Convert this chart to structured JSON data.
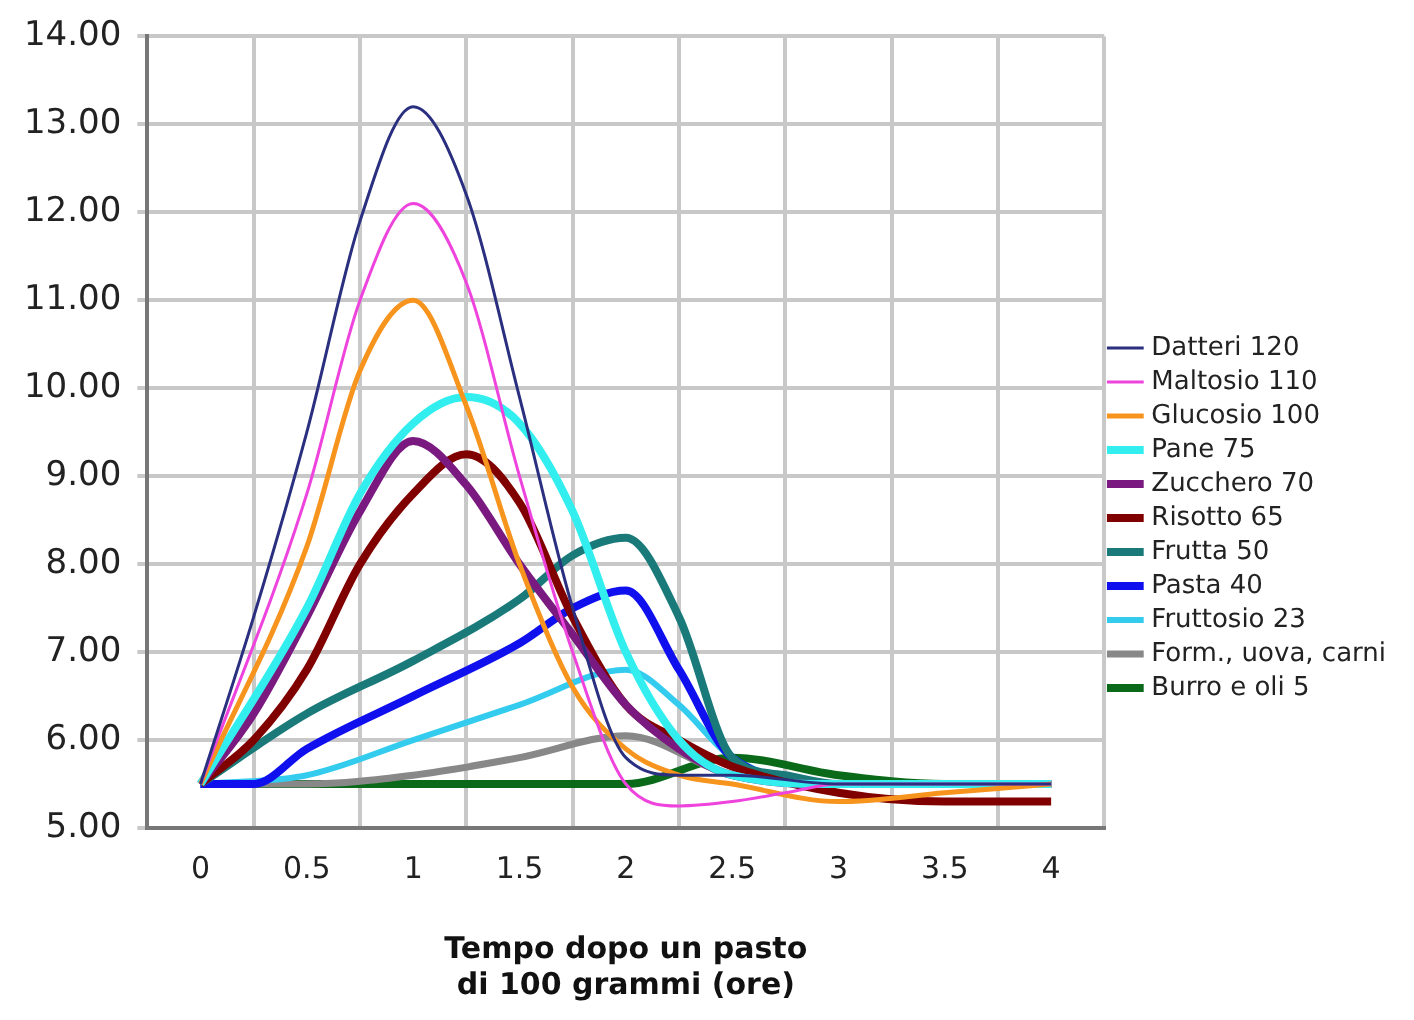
{
  "chart_data": {
    "type": "line",
    "xlabel": "Tempo dopo un pasto di 100 grammi (ore)",
    "xlim": [
      -0.25,
      4.25
    ],
    "xticks": [
      0,
      0.5,
      1,
      1.5,
      2,
      2.5,
      3,
      3.5,
      4
    ],
    "ylim": [
      5,
      14
    ],
    "yticks": [
      {
        "value": 5,
        "label": "5.00"
      },
      {
        "value": 6,
        "label": "6.00"
      },
      {
        "value": 7,
        "label": "7.00"
      },
      {
        "value": 8,
        "label": "8.00"
      },
      {
        "value": 9,
        "label": "9.00"
      },
      {
        "value": 10,
        "label": "10.00"
      },
      {
        "value": 11,
        "label": "11.00"
      },
      {
        "value": 12,
        "label": "12.00"
      },
      {
        "value": 13,
        "label": "13.00"
      },
      {
        "value": 14,
        "label": "14.00"
      }
    ],
    "grid": true,
    "legend": "right",
    "marker": "none",
    "line_style": "solid",
    "series": [
      {
        "name": "Datteri 120",
        "color": "#2b2f7f",
        "x": [
          0,
          0.25,
          0.5,
          0.75,
          1,
          1.25,
          1.5,
          1.75,
          2,
          2.25,
          2.5,
          3,
          3.5,
          4
        ],
        "values": [
          5.5,
          7.4,
          9.5,
          11.9,
          13.2,
          12.2,
          9.9,
          7.5,
          5.8,
          5.6,
          5.6,
          5.5,
          5.5,
          5.5
        ]
      },
      {
        "name": "Maltosio 110",
        "color": "#ee44dd",
        "x": [
          0,
          0.5,
          0.75,
          1,
          1.25,
          1.5,
          1.75,
          2,
          2.25,
          2.5,
          2.75,
          3,
          4
        ],
        "values": [
          5.5,
          8.8,
          11.0,
          12.1,
          11.2,
          9.0,
          7.0,
          5.5,
          5.25,
          5.3,
          5.4,
          5.5,
          5.5
        ]
      },
      {
        "name": "Glucosio 100",
        "color": "#f7941d",
        "x": [
          0,
          0.5,
          0.75,
          1,
          1.25,
          1.5,
          1.75,
          2,
          2.25,
          2.5,
          3,
          3.5,
          4
        ],
        "values": [
          5.5,
          8.2,
          10.2,
          11.0,
          9.8,
          8.0,
          6.6,
          5.9,
          5.6,
          5.5,
          5.3,
          5.4,
          5.5
        ]
      },
      {
        "name": "Pane 75",
        "color": "#33eeee",
        "x": [
          0,
          0.5,
          0.75,
          1,
          1.25,
          1.5,
          1.75,
          2,
          2.25,
          2.5,
          3,
          4
        ],
        "values": [
          5.5,
          7.5,
          8.8,
          9.6,
          9.9,
          9.6,
          8.6,
          7.0,
          6.0,
          5.6,
          5.5,
          5.5
        ]
      },
      {
        "name": "Zucchero 70",
        "color": "#7a1a80",
        "x": [
          0,
          0.25,
          0.5,
          0.75,
          1,
          1.25,
          1.5,
          1.75,
          2,
          2.25,
          2.5,
          3,
          4
        ],
        "values": [
          5.5,
          6.3,
          7.4,
          8.6,
          9.4,
          8.9,
          8.0,
          7.2,
          6.4,
          5.9,
          5.6,
          5.5,
          5.5
        ]
      },
      {
        "name": "Risotto 65",
        "color": "#800000",
        "x": [
          0,
          0.25,
          0.5,
          0.75,
          1,
          1.25,
          1.5,
          1.75,
          2,
          2.25,
          2.5,
          3,
          3.5,
          4
        ],
        "values": [
          5.5,
          6.0,
          6.8,
          8.0,
          8.8,
          9.25,
          8.7,
          7.4,
          6.4,
          6.0,
          5.7,
          5.4,
          5.3,
          5.3
        ]
      },
      {
        "name": "Frutta 50",
        "color": "#1a7a7a",
        "x": [
          0,
          0.5,
          1,
          1.5,
          1.75,
          2,
          2.25,
          2.5,
          2.75,
          3,
          4
        ],
        "values": [
          5.5,
          6.3,
          6.9,
          7.6,
          8.1,
          8.3,
          7.4,
          5.8,
          5.6,
          5.5,
          5.5
        ]
      },
      {
        "name": "Pasta 40",
        "color": "#1010ee",
        "x": [
          0,
          0.25,
          0.5,
          1,
          1.5,
          1.75,
          2,
          2.25,
          2.5,
          3,
          4
        ],
        "values": [
          5.5,
          5.5,
          5.9,
          6.5,
          7.1,
          7.5,
          7.7,
          6.8,
          5.8,
          5.5,
          5.5
        ]
      },
      {
        "name": "Fruttosio 23",
        "color": "#33ccee",
        "x": [
          0,
          0.5,
          1,
          1.5,
          2,
          2.25,
          2.5,
          3,
          4
        ],
        "values": [
          5.5,
          5.6,
          6.0,
          6.4,
          6.8,
          6.4,
          5.8,
          5.5,
          5.5
        ]
      },
      {
        "name": "Form., uova, carni",
        "color": "#888888",
        "x": [
          0,
          0.5,
          1,
          1.5,
          2,
          2.5,
          3,
          4
        ],
        "values": [
          5.5,
          5.5,
          5.6,
          5.8,
          6.05,
          5.6,
          5.5,
          5.5
        ]
      },
      {
        "name": "Burro e oli 5",
        "color": "#0a6a1a",
        "x": [
          0,
          1,
          2,
          2.5,
          3,
          3.5,
          4
        ],
        "values": [
          5.5,
          5.5,
          5.5,
          5.8,
          5.6,
          5.5,
          5.5
        ]
      }
    ]
  }
}
